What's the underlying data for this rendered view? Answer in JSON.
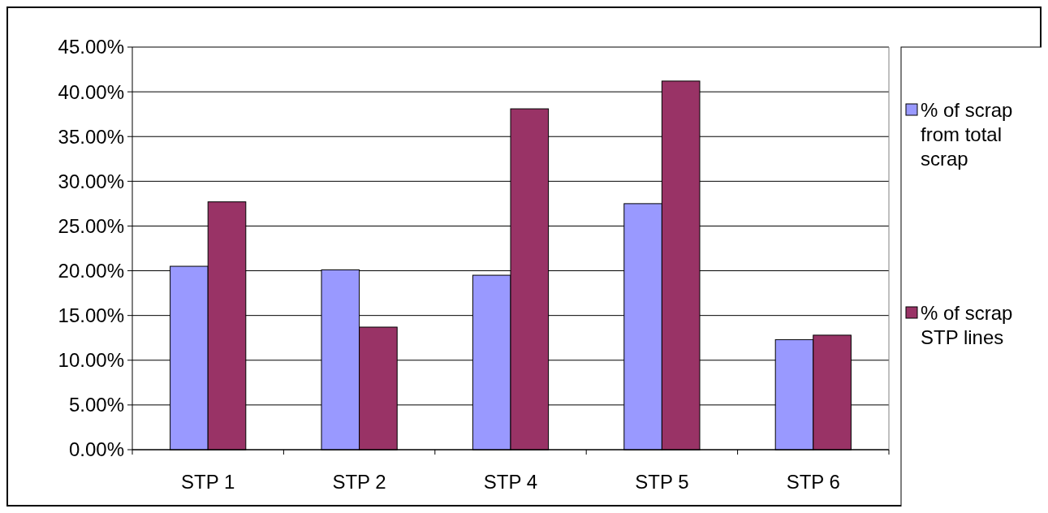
{
  "chart_data": {
    "type": "bar",
    "categories": [
      "STP 1",
      "STP 2",
      "STP 4",
      "STP 5",
      "STP 6"
    ],
    "series": [
      {
        "name": "% of scrap from total scrap",
        "color": "#9999ff",
        "values": [
          20.5,
          20.1,
          19.5,
          27.5,
          12.3
        ]
      },
      {
        "name": "% of scrap STP lines",
        "color": "#993366",
        "values": [
          27.7,
          13.7,
          38.1,
          41.2,
          12.8
        ]
      }
    ],
    "ylim": [
      0,
      45
    ],
    "yticks": [
      {
        "value": 0,
        "label": "0.00%"
      },
      {
        "value": 5,
        "label": "5.00%"
      },
      {
        "value": 10,
        "label": "10.00%"
      },
      {
        "value": 15,
        "label": "15.00%"
      },
      {
        "value": 20,
        "label": "20.00%"
      },
      {
        "value": 25,
        "label": "25.00%"
      },
      {
        "value": 30,
        "label": "30.00%"
      },
      {
        "value": 35,
        "label": "35.00%"
      },
      {
        "value": 40,
        "label": "40.00%"
      },
      {
        "value": 45,
        "label": "45.00%"
      }
    ],
    "grid": "y",
    "legend": "right"
  }
}
